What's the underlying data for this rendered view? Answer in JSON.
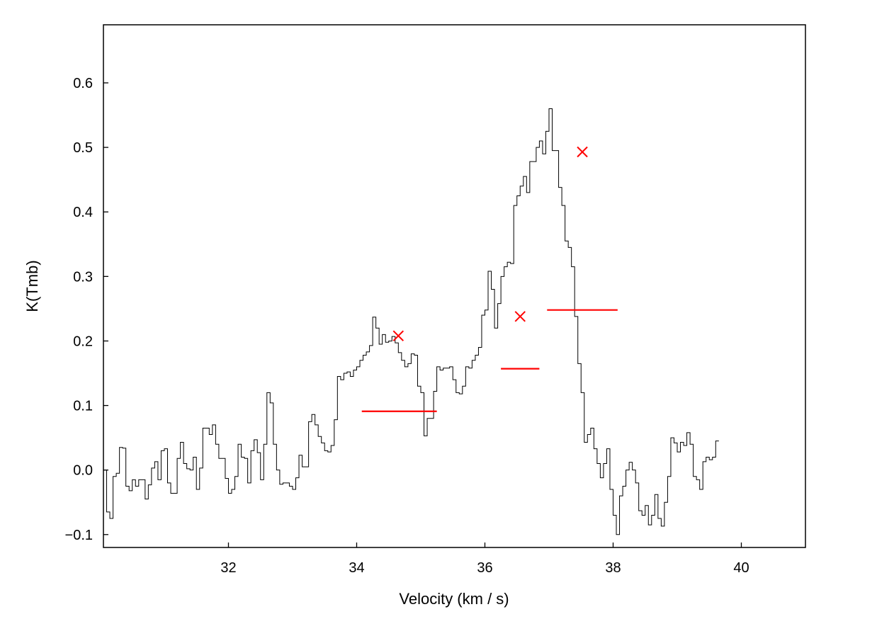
{
  "chart_data": {
    "type": "line",
    "style": "step-spectrum",
    "xlabel": "Velocity (km / s)",
    "ylabel": "K(Tmb)",
    "xlim": [
      30.05,
      41.0
    ],
    "ylim": [
      -0.12,
      0.69
    ],
    "xticks": [
      32,
      34,
      36,
      38,
      40
    ],
    "xtick_labels": [
      "32",
      "34",
      "36",
      "38",
      "40"
    ],
    "yticks": [
      -0.1,
      0.0,
      0.1,
      0.2,
      0.3,
      0.4,
      0.5,
      0.6
    ],
    "ytick_labels": [
      "−0.1",
      "0.0",
      "0.1",
      "0.2",
      "0.3",
      "0.4",
      "0.5",
      "0.6"
    ],
    "grid": false,
    "colors": {
      "spectrum": "#000000",
      "markers": "#ff0000"
    },
    "spectrum": {
      "x_start": 30.05,
      "x_step": 0.05,
      "y": [
        0.0,
        -0.065,
        -0.075,
        -0.01,
        -0.005,
        0.035,
        0.034,
        -0.025,
        -0.032,
        -0.015,
        -0.025,
        -0.015,
        -0.015,
        -0.045,
        -0.023,
        0.003,
        0.013,
        -0.015,
        0.03,
        0.033,
        -0.02,
        -0.036,
        -0.036,
        0.018,
        0.043,
        0.01,
        0.002,
        0.0,
        0.02,
        -0.03,
        0.003,
        0.065,
        0.065,
        0.055,
        0.07,
        0.04,
        0.018,
        0.018,
        -0.013,
        -0.036,
        -0.03,
        -0.01,
        0.04,
        0.02,
        0.018,
        -0.02,
        0.03,
        0.047,
        0.027,
        -0.015,
        0.04,
        0.12,
        0.104,
        0.04,
        0.0,
        -0.022,
        -0.02,
        -0.02,
        -0.025,
        -0.03,
        -0.012,
        0.023,
        0.005,
        0.005,
        0.075,
        0.086,
        0.07,
        0.052,
        0.042,
        0.03,
        0.028,
        0.038,
        0.078,
        0.145,
        0.14,
        0.15,
        0.152,
        0.145,
        0.155,
        0.16,
        0.17,
        0.178,
        0.183,
        0.193,
        0.237,
        0.22,
        0.195,
        0.21,
        0.198,
        0.2,
        0.207,
        0.197,
        0.182,
        0.17,
        0.16,
        0.165,
        0.18,
        0.178,
        0.13,
        0.12,
        0.053,
        0.08,
        0.08,
        0.122,
        0.16,
        0.155,
        0.158,
        0.158,
        0.16,
        0.14,
        0.12,
        0.118,
        0.13,
        0.16,
        0.158,
        0.17,
        0.178,
        0.19,
        0.24,
        0.248,
        0.308,
        0.28,
        0.22,
        0.258,
        0.3,
        0.315,
        0.322,
        0.32,
        0.41,
        0.425,
        0.44,
        0.455,
        0.43,
        0.478,
        0.478,
        0.5,
        0.51,
        0.49,
        0.525,
        0.56,
        0.495,
        0.495,
        0.438,
        0.41,
        0.355,
        0.345,
        0.315,
        0.238,
        0.165,
        0.12,
        0.043,
        0.055,
        0.065,
        0.033,
        0.01,
        -0.012,
        0.01,
        0.033,
        -0.03,
        -0.07,
        -0.1,
        -0.04,
        -0.025,
        0.0,
        0.012,
        0.0,
        -0.02,
        -0.063,
        -0.07,
        -0.055,
        -0.085,
        -0.07,
        -0.038,
        -0.075,
        -0.087,
        -0.05,
        -0.01,
        0.05,
        0.042,
        0.028,
        0.043,
        0.038,
        0.058,
        0.04,
        -0.01,
        -0.015,
        -0.03,
        0.013,
        0.02,
        0.016,
        0.02,
        0.045
      ]
    },
    "segments": [
      {
        "x0": 34.08,
        "x1": 35.25,
        "y": 0.091
      },
      {
        "x0": 36.25,
        "x1": 36.85,
        "y": 0.157
      },
      {
        "x0": 36.97,
        "x1": 38.07,
        "y": 0.248
      }
    ],
    "peaks": [
      {
        "x": 34.65,
        "y": 0.208
      },
      {
        "x": 36.55,
        "y": 0.238
      },
      {
        "x": 37.52,
        "y": 0.493
      }
    ]
  }
}
